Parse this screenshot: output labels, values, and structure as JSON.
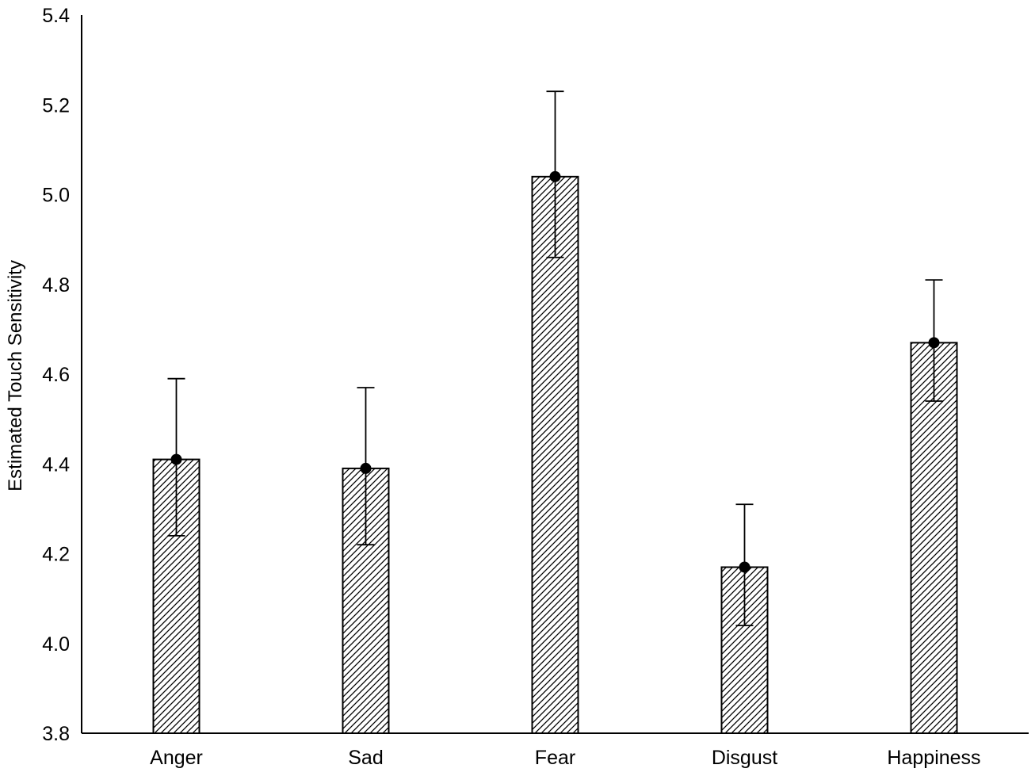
{
  "chart_data": {
    "type": "bar",
    "title": "",
    "xlabel": "",
    "ylabel": "Estimated Touch Sensitivity",
    "categories": [
      "Anger",
      "Sad",
      "Fear",
      "Disgust",
      "Happiness"
    ],
    "values": [
      4.41,
      4.39,
      5.04,
      4.17,
      4.67
    ],
    "error_upper": [
      4.59,
      4.57,
      5.23,
      4.31,
      4.81
    ],
    "error_lower": [
      4.24,
      4.22,
      4.86,
      4.04,
      4.54
    ],
    "ylim": [
      3.8,
      5.4
    ],
    "yticks": [
      "3.8",
      "4.0",
      "4.2",
      "4.4",
      "4.6",
      "4.8",
      "5.0",
      "5.2",
      "5.4"
    ],
    "grid": false,
    "legend": "none",
    "bar_fill": "diagonal-hatch",
    "marker": "filled-circle",
    "colors": {
      "bar_stroke": "#000000",
      "hatch": "#000000",
      "background": "#ffffff"
    }
  }
}
